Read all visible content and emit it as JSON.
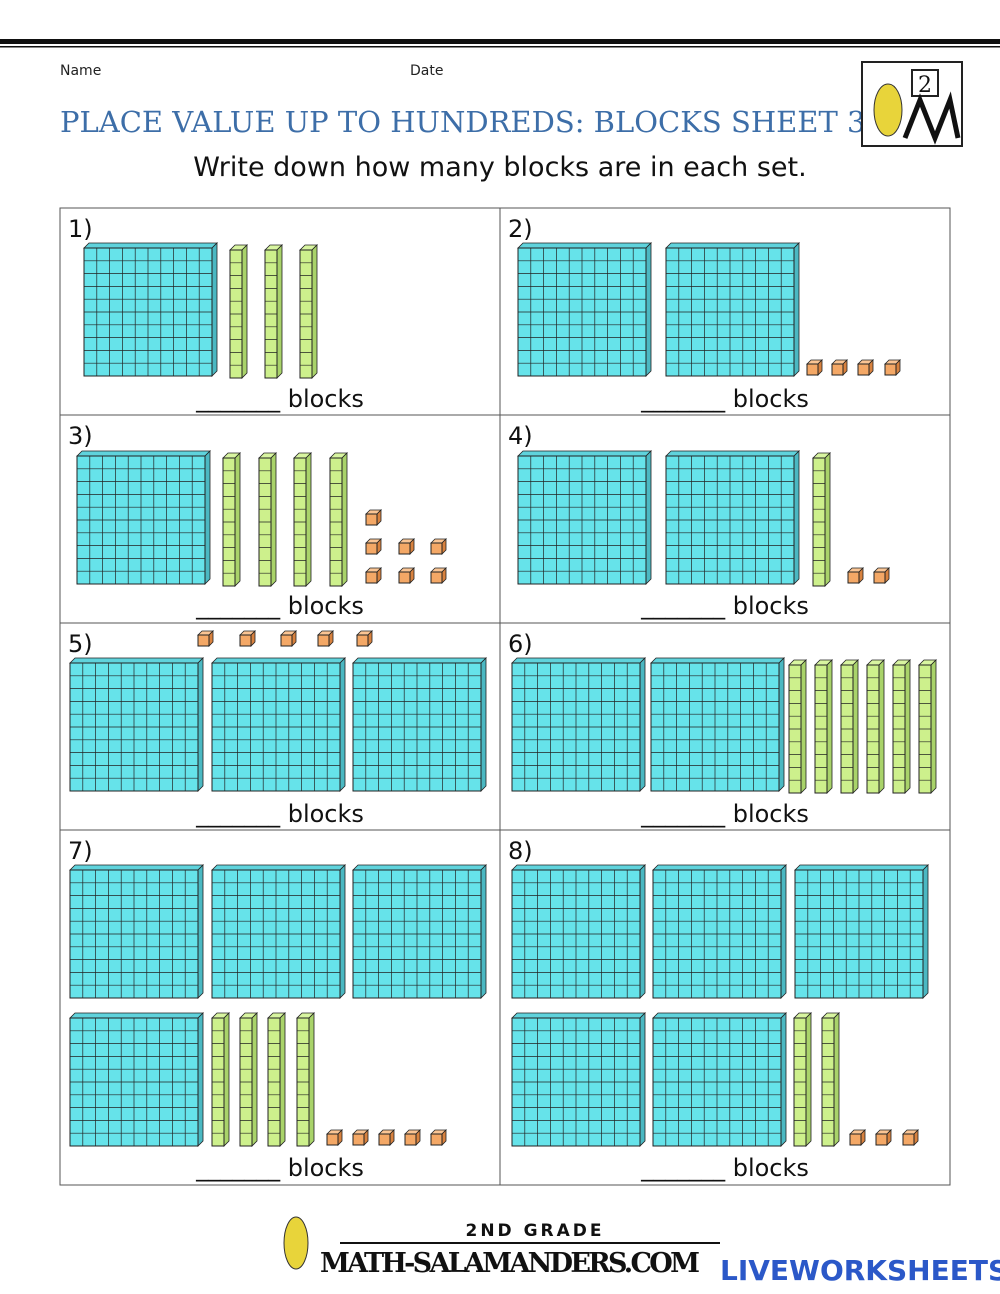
{
  "header": {
    "name_label": "Name",
    "date_label": "Date",
    "title": "PLACE VALUE UP TO HUNDREDS: BLOCKS SHEET 3",
    "instruction": "Write down how many blocks are in each set."
  },
  "logo": {
    "grade": "2"
  },
  "problems": [
    {
      "label": "1)",
      "answer_prompt": "_______ blocks"
    },
    {
      "label": "2)",
      "answer_prompt": "_______ blocks"
    },
    {
      "label": "3)",
      "answer_prompt": "_______ blocks"
    },
    {
      "label": "4)",
      "answer_prompt": "_______ blocks"
    },
    {
      "label": "5)",
      "answer_prompt": "_______ blocks"
    },
    {
      "label": "6)",
      "answer_prompt": "_______ blocks"
    },
    {
      "label": "7)",
      "answer_prompt": "_______ blocks"
    },
    {
      "label": "8)",
      "answer_prompt": "_______ blocks"
    }
  ],
  "footer": {
    "grade": "2ND GRADE",
    "site": "MATH-SALAMANDERS.COM",
    "brand": "LIVEWORKSHEETS"
  }
}
